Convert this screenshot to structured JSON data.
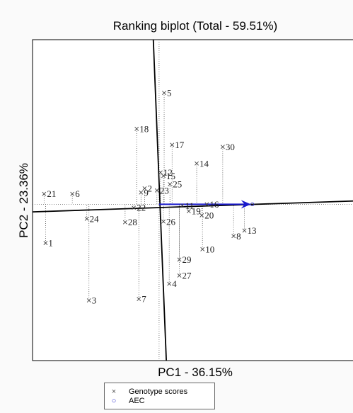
{
  "chart_data": {
    "type": "scatter",
    "title": "Ranking biplot (Total - 59.51%)",
    "xlabel": "PC1 - 36.15%",
    "ylabel": "PC2 - 23.36%",
    "xlim": [
      -1.76,
      2.74
    ],
    "ylim": [
      -2.21,
      2.43
    ],
    "grid": false,
    "legend": {
      "position": "bottom-center",
      "entries": [
        {
          "label": "Genotype scores",
          "marker": "x",
          "color": "#555555"
        },
        {
          "label": "AEC",
          "marker": "o",
          "color": "#3333cc"
        }
      ]
    },
    "aec_color": "#1a1acc",
    "genotypes": [
      {
        "label": "1",
        "x": -1.58,
        "y": -0.51
      },
      {
        "label": "2",
        "x": -0.21,
        "y": 0.28
      },
      {
        "label": "3",
        "x": -0.98,
        "y": -1.34
      },
      {
        "label": "4",
        "x": 0.13,
        "y": -1.1
      },
      {
        "label": "5",
        "x": 0.06,
        "y": 1.66
      },
      {
        "label": "6",
        "x": -1.21,
        "y": 0.2
      },
      {
        "label": "7",
        "x": -0.29,
        "y": -1.32
      },
      {
        "label": "8",
        "x": 1.02,
        "y": -0.41
      },
      {
        "label": "9",
        "x": -0.26,
        "y": 0.22
      },
      {
        "label": "10",
        "x": 0.59,
        "y": -0.6
      },
      {
        "label": "11",
        "x": 0.31,
        "y": 0.03
      },
      {
        "label": "12",
        "x": 0.01,
        "y": 0.51
      },
      {
        "label": "13",
        "x": 1.17,
        "y": -0.33
      },
      {
        "label": "14",
        "x": 0.51,
        "y": 0.64
      },
      {
        "label": "15",
        "x": 0.05,
        "y": 0.46
      },
      {
        "label": "16",
        "x": 0.65,
        "y": 0.05
      },
      {
        "label": "17",
        "x": 0.17,
        "y": 0.91
      },
      {
        "label": "18",
        "x": -0.32,
        "y": 1.14
      },
      {
        "label": "19",
        "x": 0.4,
        "y": -0.05
      },
      {
        "label": "20",
        "x": 0.58,
        "y": -0.11
      },
      {
        "label": "21",
        "x": -1.6,
        "y": 0.2
      },
      {
        "label": "22",
        "x": -0.36,
        "y": 0.0
      },
      {
        "label": "23",
        "x": -0.04,
        "y": 0.25
      },
      {
        "label": "24",
        "x": -1.01,
        "y": -0.16
      },
      {
        "label": "25",
        "x": 0.14,
        "y": 0.34
      },
      {
        "label": "26",
        "x": 0.05,
        "y": -0.2
      },
      {
        "label": "27",
        "x": 0.27,
        "y": -0.98
      },
      {
        "label": "28",
        "x": -0.48,
        "y": -0.21
      },
      {
        "label": "29",
        "x": 0.27,
        "y": -0.75
      },
      {
        "label": "30",
        "x": 0.87,
        "y": 0.88
      }
    ],
    "axes_lines": {
      "pc1_line": {
        "x_start": -1.76,
        "y_start": -0.06,
        "x_end": 2.74,
        "y_end": 0.1
      },
      "pc2_line": {
        "x_start": -0.09,
        "y_start": 2.43,
        "x_end": 0.09,
        "y_end": -2.21
      }
    },
    "aec_arrow": {
      "x_start": -0.01,
      "y_start": 0.05,
      "x_end": 1.26,
      "y_end": 0.05
    }
  }
}
